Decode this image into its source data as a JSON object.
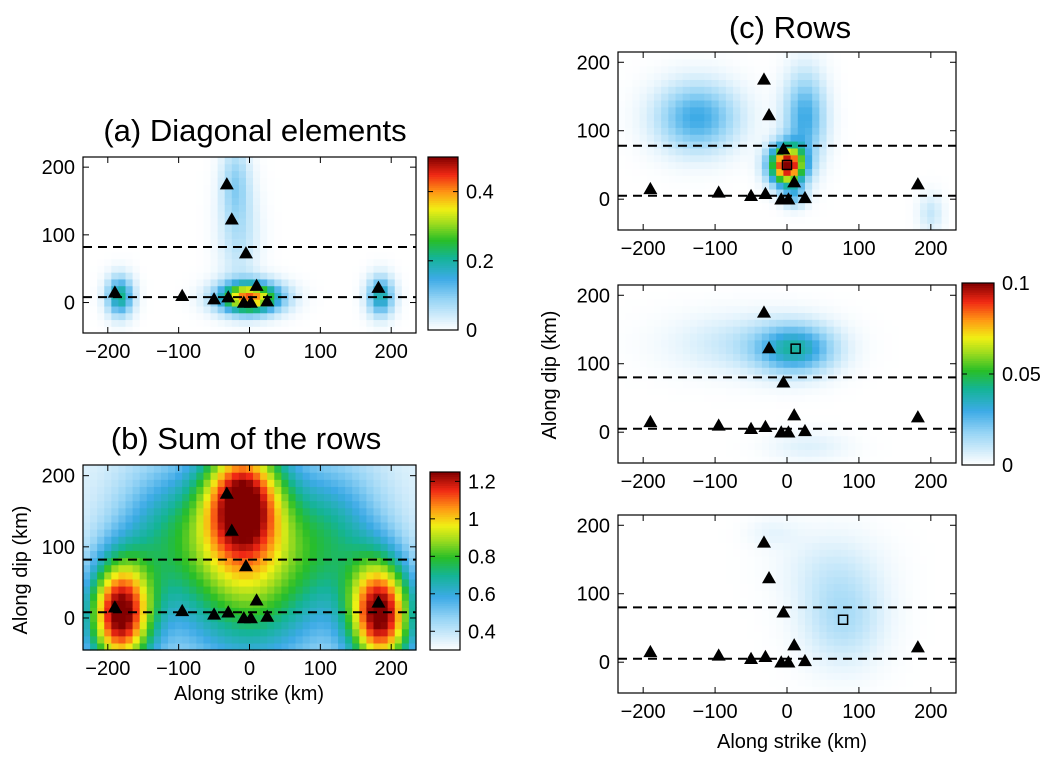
{
  "colors": {
    "background": "#ffffff",
    "station_marker": "#000000",
    "dashed_lines": "#000000",
    "colormap": "jet (white at zero)"
  },
  "chart_data": [
    {
      "id": "a",
      "type": "heatmap",
      "title": "(a) Diagonal elements",
      "xlabel": "",
      "ylabel": "",
      "xlim": [
        -235,
        235
      ],
      "ylim": [
        -45,
        215
      ],
      "xticks": [
        "−200",
        "−100",
        "0",
        "100",
        "200"
      ],
      "yticks": [
        "0",
        "100",
        "200"
      ],
      "colorbar": {
        "range": [
          0,
          0.5
        ],
        "ticks": [
          "0",
          "0.2",
          "0.4"
        ],
        "tick_values": [
          0,
          0.2,
          0.4
        ]
      },
      "dashed_lines_y": [
        8,
        82
      ],
      "grid": false,
      "hotspots": [
        {
          "x": -183,
          "y": 10,
          "sx": 13,
          "sy": 20,
          "v": 0.22
        },
        {
          "x": 185,
          "y": 10,
          "sx": 13,
          "sy": 20,
          "v": 0.2
        },
        {
          "x": 0,
          "y": 8,
          "sx": 30,
          "sy": 16,
          "v": 0.42
        },
        {
          "x": -20,
          "y": 180,
          "sx": 14,
          "sy": 40,
          "v": 0.08
        },
        {
          "x": -15,
          "y": 100,
          "sx": 20,
          "sy": 55,
          "v": 0.06
        }
      ],
      "markers": []
    },
    {
      "id": "b",
      "type": "heatmap",
      "title": "(b) Sum of the rows",
      "xlabel": "Along strike (km)",
      "ylabel": "Along dip (km)",
      "xlim": [
        -235,
        235
      ],
      "ylim": [
        -45,
        215
      ],
      "xticks": [
        "−200",
        "−100",
        "0",
        "100",
        "200"
      ],
      "yticks": [
        "0",
        "100",
        "200"
      ],
      "colorbar": {
        "range": [
          0.3,
          1.25
        ],
        "ticks": [
          "0.4",
          "0.6",
          "0.8",
          "1",
          "1.2"
        ],
        "tick_values": [
          0.4,
          0.6,
          0.8,
          1.0,
          1.2
        ]
      },
      "dashed_lines_y": [
        8,
        82
      ],
      "grid": false,
      "base_value": 0.35,
      "hotspots": [
        {
          "x": -183,
          "y": 5,
          "sx": 32,
          "sy": 55,
          "v": 0.9
        },
        {
          "x": 185,
          "y": 5,
          "sx": 32,
          "sy": 55,
          "v": 0.9
        },
        {
          "x": -10,
          "y": 170,
          "sx": 40,
          "sy": 60,
          "v": 0.75
        },
        {
          "x": 0,
          "y": 60,
          "sx": 75,
          "sy": 90,
          "v": 0.5
        },
        {
          "x": -120,
          "y": 120,
          "sx": 50,
          "sy": 70,
          "v": 0.25
        },
        {
          "x": 120,
          "y": 120,
          "sx": 50,
          "sy": 70,
          "v": 0.25
        }
      ],
      "markers": []
    },
    {
      "id": "c1",
      "type": "heatmap",
      "title": "(c) Rows",
      "xlabel": "",
      "ylabel": "",
      "xlim": [
        -235,
        235
      ],
      "ylim": [
        -45,
        215
      ],
      "xticks": [
        "−200",
        "−100",
        "0",
        "100",
        "200"
      ],
      "yticks": [
        "0",
        "100",
        "200"
      ],
      "colorbar": null,
      "dashed_lines_y": [
        5,
        78
      ],
      "grid": false,
      "hotspots": [
        {
          "x": 0,
          "y": 50,
          "sx": 17,
          "sy": 20,
          "v": 0.1
        },
        {
          "x": -125,
          "y": 120,
          "sx": 40,
          "sy": 35,
          "v": 0.03
        },
        {
          "x": 25,
          "y": 120,
          "sx": 20,
          "sy": 45,
          "v": 0.03
        },
        {
          "x": 10,
          "y": 5,
          "sx": 12,
          "sy": 12,
          "v": 0.02
        },
        {
          "x": 200,
          "y": -20,
          "sx": 12,
          "sy": 20,
          "v": 0.01
        }
      ],
      "markers": [
        {
          "x": 0,
          "y": 50
        }
      ]
    },
    {
      "id": "c2",
      "type": "heatmap",
      "title": "",
      "xlabel": "",
      "ylabel": "Along dip (km)",
      "xlim": [
        -235,
        235
      ],
      "ylim": [
        -45,
        215
      ],
      "xticks": [
        "−200",
        "−100",
        "0",
        "100",
        "200"
      ],
      "yticks": [
        "0",
        "100",
        "200"
      ],
      "colorbar": {
        "range": [
          0,
          0.1
        ],
        "ticks": [
          "0",
          "0.05",
          "0.1"
        ],
        "tick_values": [
          0,
          0.05,
          0.1
        ]
      },
      "dashed_lines_y": [
        5,
        80
      ],
      "grid": false,
      "hotspots": [
        {
          "x": 12,
          "y": 122,
          "sx": 38,
          "sy": 25,
          "v": 0.035
        },
        {
          "x": -60,
          "y": 130,
          "sx": 70,
          "sy": 30,
          "v": 0.01
        },
        {
          "x": 30,
          "y": -20,
          "sx": 40,
          "sy": 15,
          "v": 0.006
        }
      ],
      "markers": [
        {
          "x": 12,
          "y": 122
        }
      ]
    },
    {
      "id": "c3",
      "type": "heatmap",
      "title": "",
      "xlabel": "Along strike (km)",
      "ylabel": "",
      "xlim": [
        -235,
        235
      ],
      "ylim": [
        -45,
        215
      ],
      "xticks": [
        "−200",
        "−100",
        "0",
        "100",
        "200"
      ],
      "yticks": [
        "0",
        "100",
        "200"
      ],
      "colorbar": null,
      "dashed_lines_y": [
        5,
        80
      ],
      "grid": false,
      "hotspots": [
        {
          "x": 78,
          "y": 65,
          "sx": 40,
          "sy": 48,
          "v": 0.014
        },
        {
          "x": 60,
          "y": 140,
          "sx": 50,
          "sy": 40,
          "v": 0.006
        },
        {
          "x": -20,
          "y": 190,
          "sx": 25,
          "sy": 15,
          "v": 0.004
        }
      ],
      "markers": [
        {
          "x": 78,
          "y": 62
        }
      ]
    }
  ],
  "stations": [
    {
      "x": -190,
      "y": 15
    },
    {
      "x": -95,
      "y": 10
    },
    {
      "x": -50,
      "y": 5
    },
    {
      "x": -30,
      "y": 8
    },
    {
      "x": -8,
      "y": 0
    },
    {
      "x": 2,
      "y": 0
    },
    {
      "x": 10,
      "y": 25
    },
    {
      "x": 25,
      "y": 2
    },
    {
      "x": -5,
      "y": 73
    },
    {
      "x": -25,
      "y": 123
    },
    {
      "x": -32,
      "y": 175
    },
    {
      "x": 182,
      "y": 22
    }
  ]
}
